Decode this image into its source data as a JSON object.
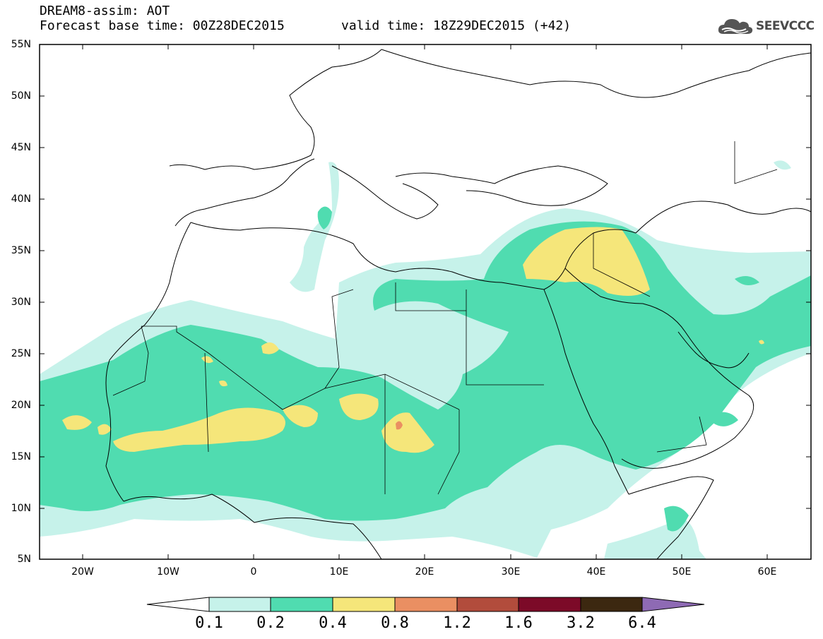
{
  "header": {
    "line1": "DREAM8-assim: AOT",
    "line2": "Forecast base time: 00Z28DEC2015",
    "valid": "valid time: 18Z29DEC2015 (+42)"
  },
  "logo": {
    "text": "SEEVCCC",
    "icon": "cloud-icon"
  },
  "map": {
    "lon_range": [
      -25,
      65
    ],
    "lat_range": [
      5,
      55
    ],
    "lat_ticks": [
      "55N",
      "50N",
      "45N",
      "40N",
      "35N",
      "30N",
      "25N",
      "20N",
      "15N",
      "10N",
      "5N"
    ],
    "lon_ticks": [
      "20W",
      "10W",
      "0",
      "10E",
      "20E",
      "30E",
      "40E",
      "50E",
      "60E"
    ]
  },
  "colorbar": {
    "labels": [
      "0.1",
      "0.2",
      "0.4",
      "0.8",
      "1.2",
      "1.6",
      "3.2",
      "6.4"
    ],
    "colors": [
      "#ffffff",
      "#c6f2ea",
      "#50dcb0",
      "#f5e67a",
      "#ea8f62",
      "#b24c3c",
      "#7c0a28",
      "#3c2810",
      "#8e6ab4"
    ]
  }
}
